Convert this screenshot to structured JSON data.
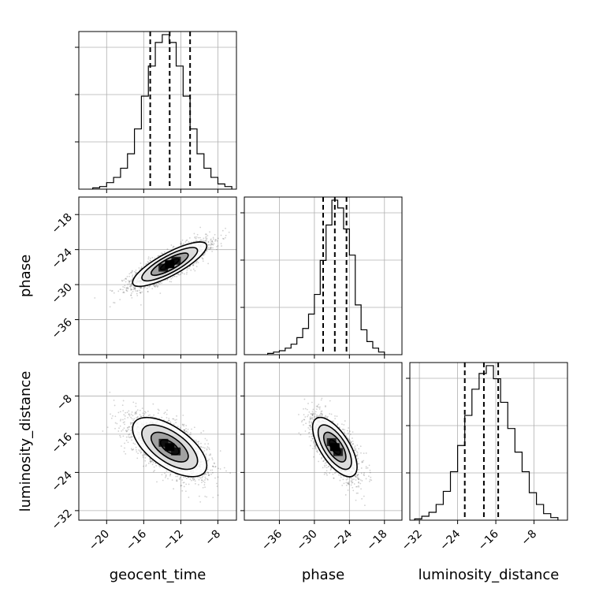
{
  "chart_data": {
    "type": "corner",
    "parameters": [
      "geocent_time",
      "phase",
      "luminosity_distance"
    ],
    "xlabels": [
      "geocent_time",
      "phase",
      "luminosity_distance"
    ],
    "ylabels": [
      "",
      "phase",
      "luminosity_distance"
    ],
    "ranges": {
      "geocent_time": [
        -23,
        -6
      ],
      "phase": [
        -42,
        -15
      ],
      "luminosity_distance": [
        -34,
        -1
      ]
    },
    "ticks": {
      "geocent_time": [
        "-20",
        "-16",
        "-12",
        "-8"
      ],
      "phase": [
        "-36",
        "-30",
        "-24",
        "-18"
      ],
      "luminosity_distance": [
        "-32",
        "-24",
        "-16",
        "-8"
      ]
    },
    "histograms": {
      "geocent_time": {
        "bin_edges": [
          -21.5,
          -20.75,
          -20,
          -19.25,
          -18.5,
          -17.75,
          -17,
          -16.25,
          -15.5,
          -14.75,
          -14,
          -13.25,
          -12.5,
          -11.75,
          -11,
          -10.25,
          -9.5,
          -8.75,
          -8,
          -7.25,
          -6.5
        ],
        "counts": [
          1,
          2,
          5,
          9,
          16,
          27,
          46,
          71,
          94,
          112,
          118,
          112,
          94,
          71,
          46,
          27,
          16,
          9,
          4,
          2
        ],
        "quantiles": [
          -15.3,
          -13.2,
          -11.0
        ]
      },
      "phase": {
        "bin_edges": [
          -38,
          -37,
          -36,
          -35,
          -34,
          -33,
          -32,
          -31,
          -30,
          -29,
          -28,
          -27,
          -26,
          -25,
          -24,
          -23,
          -22,
          -21,
          -20,
          -19,
          -18
        ],
        "counts": [
          1,
          2,
          3,
          5,
          8,
          13,
          20,
          31,
          46,
          72,
          99,
          118,
          112,
          96,
          76,
          38,
          19,
          10,
          5,
          2
        ],
        "quantiles": [
          -28.5,
          -26.5,
          -24.5
        ]
      },
      "luminosity_distance": {
        "bin_edges": [
          -33,
          -31.5,
          -30,
          -28.5,
          -27,
          -25.5,
          -24,
          -22.5,
          -21,
          -19.5,
          -18,
          -16.5,
          -15,
          -13.5,
          -12,
          -10.5,
          -9,
          -7.5,
          -6,
          -4.5,
          -3
        ],
        "counts": [
          1,
          3,
          6,
          12,
          22,
          37,
          57,
          80,
          100,
          112,
          118,
          108,
          90,
          70,
          52,
          37,
          21,
          12,
          5,
          2
        ],
        "quantiles": [
          -22.5,
          -18.5,
          -15.5
        ]
      }
    },
    "joint": {
      "phase_vs_geocent_time": {
        "center": [
          -13.2,
          -26.5
        ],
        "sd": [
          2.0,
          1.9
        ],
        "correlation": 0.82,
        "contour_levels_sigma": [
          0.5,
          1.0,
          1.5,
          2.0
        ]
      },
      "luminosity_distance_vs_geocent_time": {
        "center": [
          -13.2,
          -18.7
        ],
        "sd": [
          2.0,
          3.1
        ],
        "correlation": -0.62,
        "contour_levels_sigma": [
          0.5,
          1.0,
          1.5,
          2.0
        ]
      },
      "luminosity_distance_vs_phase": {
        "center": [
          -26.5,
          -18.7
        ],
        "sd": [
          1.9,
          3.1
        ],
        "correlation": -0.66,
        "contour_levels_sigma": [
          0.5,
          1.0,
          1.5,
          2.0
        ]
      }
    },
    "grid": true
  }
}
